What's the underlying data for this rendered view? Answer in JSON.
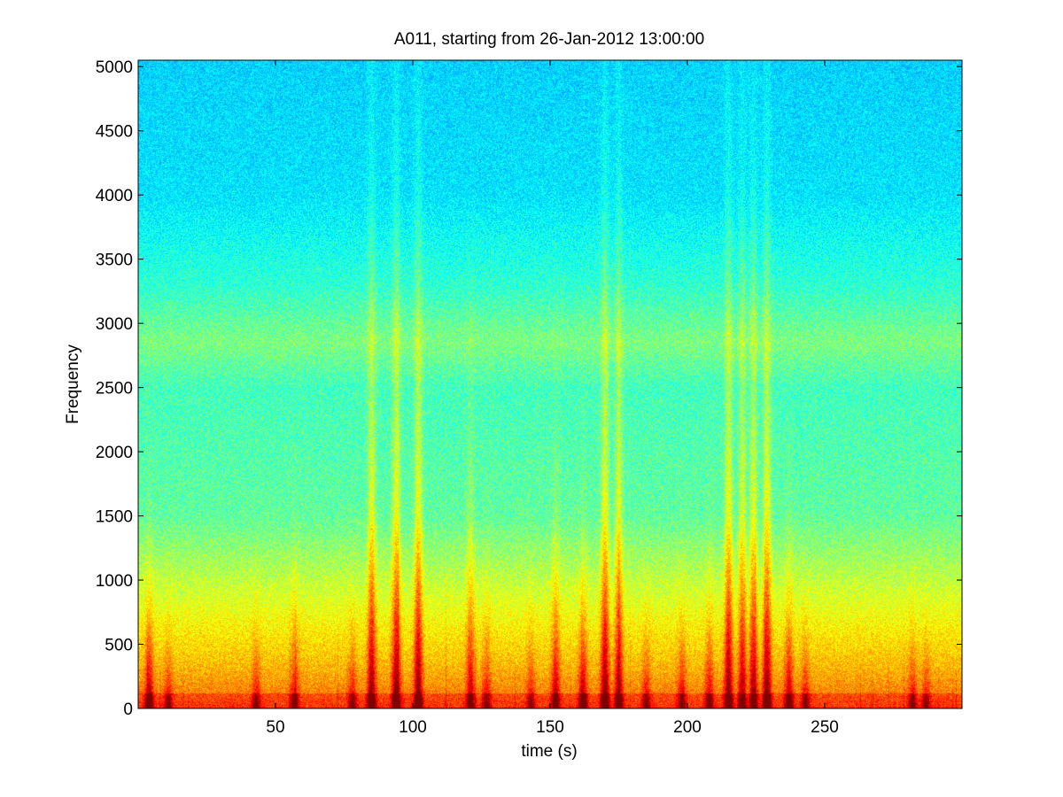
{
  "chart_data": {
    "type": "heatmap",
    "title": "A011, starting from 26-Jan-2012 13:00:00",
    "xlabel": "time (s)",
    "ylabel": "Frequency",
    "xlim": [
      0,
      300
    ],
    "ylim": [
      0,
      5050
    ],
    "x_ticks": [
      {
        "value": 50,
        "label": "50"
      },
      {
        "value": 100,
        "label": "100"
      },
      {
        "value": 150,
        "label": "150"
      },
      {
        "value": 200,
        "label": "200"
      },
      {
        "value": 250,
        "label": "250"
      }
    ],
    "y_ticks": [
      {
        "value": 0,
        "label": "0"
      },
      {
        "value": 500,
        "label": "500"
      },
      {
        "value": 1000,
        "label": "1000"
      },
      {
        "value": 1500,
        "label": "1500"
      },
      {
        "value": 2000,
        "label": "2000"
      },
      {
        "value": 2500,
        "label": "2500"
      },
      {
        "value": 3000,
        "label": "3000"
      },
      {
        "value": 3500,
        "label": "3500"
      },
      {
        "value": 4000,
        "label": "4000"
      },
      {
        "value": 4500,
        "label": "4500"
      },
      {
        "value": 5000,
        "label": "5000"
      }
    ],
    "colormap": "jet",
    "grid": false,
    "legend": "none",
    "intensity_profile": {
      "note_free": true,
      "background_level_by_frequency": [
        {
          "frequency": 0,
          "level": 0.78
        },
        {
          "frequency": 300,
          "level": 0.7
        },
        {
          "frequency": 800,
          "level": 0.6
        },
        {
          "frequency": 1500,
          "level": 0.47
        },
        {
          "frequency": 2500,
          "level": 0.44
        },
        {
          "frequency": 2850,
          "level": 0.5
        },
        {
          "frequency": 3300,
          "level": 0.42
        },
        {
          "frequency": 4000,
          "level": 0.35
        },
        {
          "frequency": 5050,
          "level": 0.33
        }
      ],
      "broadband_events": [
        {
          "time": 4,
          "strength": 0.9,
          "extent": 1300
        },
        {
          "time": 11,
          "strength": 0.6,
          "extent": 700
        },
        {
          "time": 43,
          "strength": 0.6,
          "extent": 900
        },
        {
          "time": 57,
          "strength": 0.65,
          "extent": 1200
        },
        {
          "time": 78,
          "strength": 0.6,
          "extent": 900
        },
        {
          "time": 85,
          "strength": 0.95,
          "extent": 5050
        },
        {
          "time": 94,
          "strength": 1.0,
          "extent": 5050
        },
        {
          "time": 102,
          "strength": 1.0,
          "extent": 5050
        },
        {
          "time": 121,
          "strength": 0.75,
          "extent": 2500
        },
        {
          "time": 127,
          "strength": 0.6,
          "extent": 1100
        },
        {
          "time": 143,
          "strength": 0.55,
          "extent": 900
        },
        {
          "time": 152,
          "strength": 0.8,
          "extent": 2000
        },
        {
          "time": 162,
          "strength": 0.85,
          "extent": 1500
        },
        {
          "time": 170,
          "strength": 1.0,
          "extent": 5050
        },
        {
          "time": 175,
          "strength": 0.85,
          "extent": 5050
        },
        {
          "time": 185,
          "strength": 0.6,
          "extent": 900
        },
        {
          "time": 198,
          "strength": 0.65,
          "extent": 1000
        },
        {
          "time": 208,
          "strength": 0.7,
          "extent": 1200
        },
        {
          "time": 215,
          "strength": 1.0,
          "extent": 5050
        },
        {
          "time": 220,
          "strength": 0.8,
          "extent": 5050
        },
        {
          "time": 224,
          "strength": 0.85,
          "extent": 5050
        },
        {
          "time": 229,
          "strength": 1.0,
          "extent": 5050
        },
        {
          "time": 237,
          "strength": 0.8,
          "extent": 1500
        },
        {
          "time": 243,
          "strength": 0.6,
          "extent": 900
        },
        {
          "time": 282,
          "strength": 0.6,
          "extent": 800
        },
        {
          "time": 287,
          "strength": 0.55,
          "extent": 700
        }
      ]
    }
  }
}
